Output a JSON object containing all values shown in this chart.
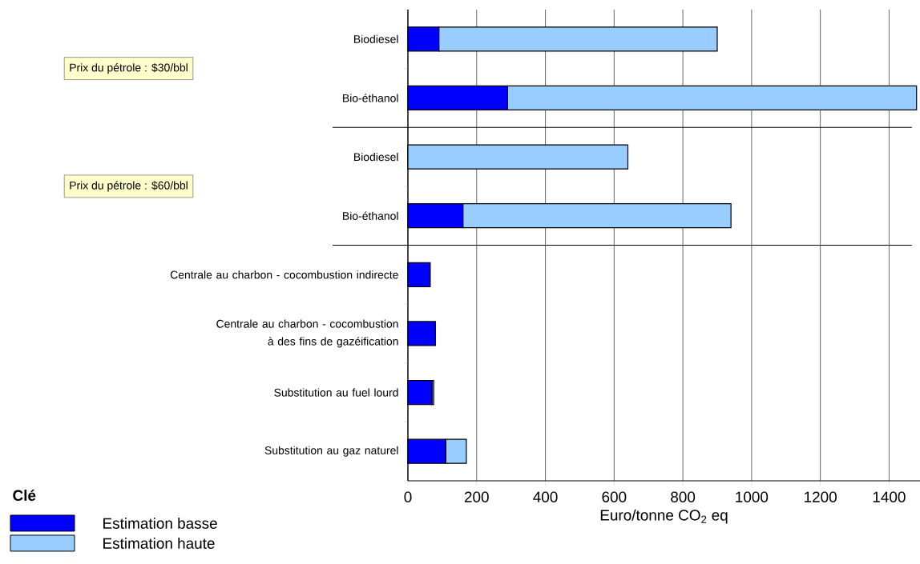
{
  "chart_data": {
    "type": "bar",
    "orientation": "horizontal",
    "stacked": true,
    "categories": [
      "Biodiesel",
      "Bio-éthanol",
      "Biodiesel",
      "Bio-éthanol",
      "Centrale au charbon - cocombustion indirecte",
      "Centrale au charbon - cocombustion à des fins de gazéification",
      "Substitution au fuel lourd",
      "Substitution au gaz naturel"
    ],
    "series": [
      {
        "name": "Estimation basse",
        "color": "#0000ff",
        "values": [
          90,
          290,
          0,
          160,
          65,
          80,
          70,
          110
        ]
      },
      {
        "name": "Estimation haute",
        "color": "#99ccff",
        "values": [
          810,
          1190,
          640,
          780,
          0,
          0,
          5,
          60
        ]
      }
    ],
    "xlabel": "Euro/tonne CO$_{2}$ eq",
    "legend_title": "Clé",
    "legend": "bottom left",
    "xlim": [
      0,
      1490
    ],
    "xticks": [
      0,
      200,
      400,
      600,
      800,
      1000,
      1200,
      1400
    ],
    "grid": "x",
    "annotations": [
      "Prix du pétrole : $30/bbl",
      "Prix du pétrole : $60/bbl"
    ]
  }
}
